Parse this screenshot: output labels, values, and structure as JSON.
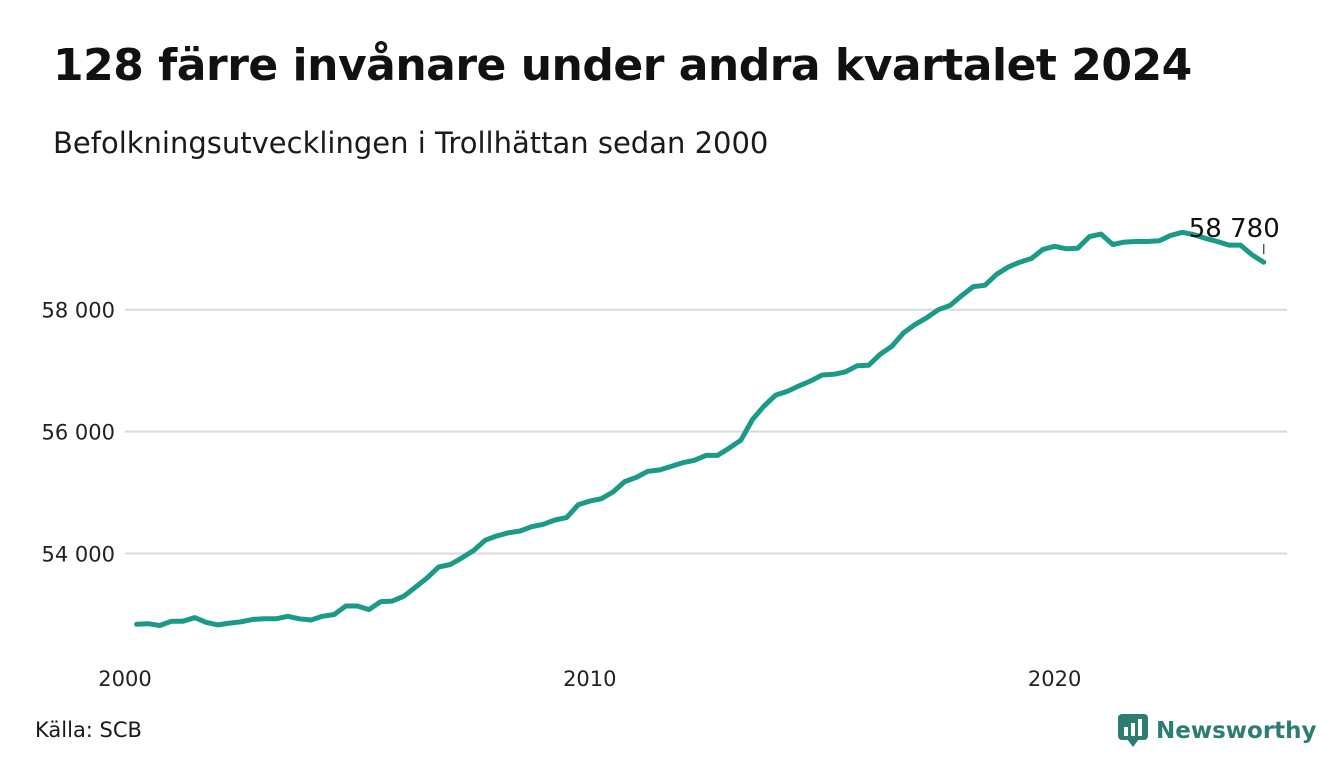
{
  "title": "128 färre invånare under andra kvartalet 2024",
  "subtitle": "Befolkningsutvecklingen i Trollhättan sedan 2000",
  "source": "Källa: SCB",
  "brand": {
    "name": "Newsworthy",
    "icon": "newsworthy-logo-icon"
  },
  "colors": {
    "line": "#1a9a87",
    "grid": "#d9d9d9",
    "brand": "#2d7d73",
    "text": "#111111"
  },
  "chart_data": {
    "type": "line",
    "title": "",
    "xlabel": "",
    "ylabel": "",
    "x_ticks": [
      "2000",
      "2010",
      "2020"
    ],
    "y_ticks": [
      "54 000",
      "56 000",
      "58 000"
    ],
    "xlim": [
      2000,
      2025
    ],
    "ylim": [
      52500,
      59800
    ],
    "grid": true,
    "end_label": "58 780",
    "series": [
      {
        "name": "",
        "x": [
          2000.25,
          2000.5,
          2000.75,
          2001,
          2001.25,
          2001.5,
          2001.75,
          2002,
          2002.25,
          2002.5,
          2002.75,
          2003,
          2003.25,
          2003.5,
          2003.75,
          2004,
          2004.25,
          2004.5,
          2004.75,
          2005,
          2005.25,
          2005.5,
          2005.75,
          2006,
          2006.25,
          2006.5,
          2006.75,
          2007,
          2007.25,
          2007.5,
          2007.75,
          2008,
          2008.25,
          2008.5,
          2008.75,
          2009,
          2009.25,
          2009.5,
          2009.75,
          2010,
          2010.25,
          2010.5,
          2010.75,
          2011,
          2011.25,
          2011.5,
          2011.75,
          2012,
          2012.25,
          2012.5,
          2012.75,
          2013,
          2013.25,
          2013.5,
          2013.75,
          2014,
          2014.25,
          2014.5,
          2014.75,
          2015,
          2015.25,
          2015.5,
          2015.75,
          2016,
          2016.25,
          2016.5,
          2016.75,
          2017,
          2017.25,
          2017.5,
          2017.75,
          2018,
          2018.25,
          2018.5,
          2018.75,
          2019,
          2019.25,
          2019.5,
          2019.75,
          2020,
          2020.25,
          2020.5,
          2020.75,
          2021,
          2021.25,
          2021.5,
          2021.75,
          2022,
          2022.25,
          2022.5,
          2022.75,
          2023,
          2023.25,
          2023.5,
          2023.75,
          2024,
          2024.25,
          2024.5
        ],
        "values": [
          52840,
          52850,
          52820,
          52890,
          52890,
          52950,
          52870,
          52830,
          52860,
          52880,
          52920,
          52930,
          52930,
          52970,
          52930,
          52910,
          52970,
          53000,
          53140,
          53140,
          53080,
          53210,
          53220,
          53300,
          53450,
          53600,
          53780,
          53820,
          53930,
          54050,
          54220,
          54290,
          54340,
          54370,
          54440,
          54480,
          54550,
          54590,
          54800,
          54860,
          54900,
          55010,
          55180,
          55250,
          55350,
          55370,
          55430,
          55490,
          55530,
          55610,
          55610,
          55730,
          55860,
          56200,
          56420,
          56600,
          56660,
          56750,
          56830,
          56930,
          56940,
          56980,
          57080,
          57090,
          57270,
          57400,
          57620,
          57760,
          57870,
          58000,
          58070,
          58230,
          58380,
          58400,
          58580,
          58700,
          58780,
          58840,
          58990,
          59040,
          59000,
          59010,
          59200,
          59240,
          59070,
          59110,
          59120,
          59120,
          59130,
          59220,
          59270,
          59230,
          59170,
          59120,
          59060,
          59060,
          58900,
          58780
        ]
      }
    ]
  }
}
